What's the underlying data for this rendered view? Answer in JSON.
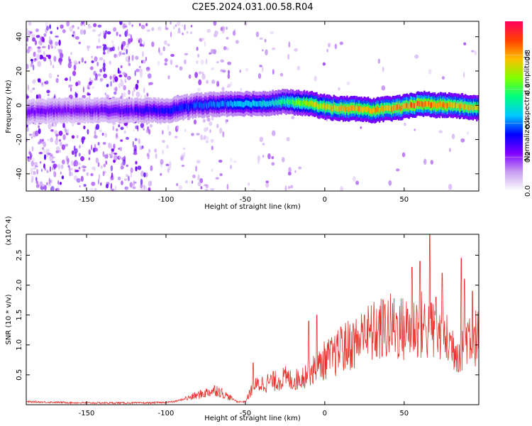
{
  "title": "C2E5.2024.031.00.58.R04",
  "colors": {
    "snr_line": "#e8302a",
    "axis": "#000000",
    "colorbar_stops": [
      "#ffffff",
      "#c8a0f0",
      "#8000ff",
      "#0000ff",
      "#00c8ff",
      "#00ff80",
      "#80ff00",
      "#ffc000",
      "#ff4000",
      "#ff0060"
    ]
  },
  "chart_data": [
    {
      "type": "heatmap",
      "xlabel": "Height of straight line (km)",
      "ylabel": "Frequency (Hz)",
      "xlim": [
        -188,
        97
      ],
      "ylim": [
        -50,
        49
      ],
      "xticks": [
        -150,
        -100,
        -50,
        0,
        50
      ],
      "yticks": [
        -40,
        -20,
        0,
        20,
        40
      ],
      "colorbar": {
        "label": "Normalized spectral amplitude",
        "range": [
          0.0,
          1.0
        ],
        "ticks": [
          0.0,
          0.2,
          0.4,
          0.6,
          0.8
        ]
      },
      "ridge": {
        "x": [
          -188,
          -170,
          -150,
          -120,
          -100,
          -80,
          -60,
          -40,
          -25,
          -10,
          0,
          10,
          20,
          30,
          40,
          50,
          60,
          70,
          80,
          90,
          97
        ],
        "freq": [
          -4,
          -3,
          -3,
          -3,
          -3,
          0,
          1,
          1,
          2,
          1,
          -1,
          -2,
          -2,
          -3,
          -2,
          -1,
          1,
          0,
          0,
          -1,
          -2
        ],
        "peak_amplitude": [
          0.25,
          0.25,
          0.25,
          0.3,
          0.35,
          0.4,
          0.45,
          0.5,
          0.6,
          0.75,
          0.8,
          0.85,
          0.85,
          0.85,
          0.85,
          0.9,
          0.9,
          0.9,
          0.85,
          0.85,
          0.8
        ]
      }
    },
    {
      "type": "line",
      "xlabel": "Height of straight line (km)",
      "ylabel": "SNR (10 * v/v)",
      "y_multiplier": "(x10^4)",
      "xlim": [
        -188,
        97
      ],
      "ylim": [
        0,
        2.85
      ],
      "xticks": [
        -150,
        -100,
        -50,
        0,
        50
      ],
      "yticks": [
        0.5,
        1.0,
        1.5,
        2.0,
        2.5
      ],
      "series": [
        {
          "x": [
            -188,
            -170,
            -150,
            -130,
            -110,
            -100,
            -95,
            -85,
            -75,
            -68,
            -62,
            -55,
            -50,
            -45,
            -40,
            -35,
            -30,
            -25,
            -20,
            -15,
            -10,
            -5,
            0,
            5,
            10,
            15,
            20,
            25,
            30,
            35,
            40,
            45,
            50,
            55,
            60,
            65,
            70,
            75,
            80,
            85,
            90,
            97
          ],
          "y": [
            0.05,
            0.04,
            0.03,
            0.03,
            0.03,
            0.04,
            0.05,
            0.12,
            0.2,
            0.25,
            0.15,
            0.05,
            0.05,
            0.3,
            0.35,
            0.38,
            0.4,
            0.45,
            0.4,
            0.45,
            0.55,
            0.6,
            0.75,
            0.8,
            0.9,
            1.0,
            1.05,
            1.15,
            1.2,
            1.25,
            1.3,
            1.3,
            1.25,
            1.3,
            1.35,
            1.25,
            1.2,
            1.1,
            1.0,
            0.9,
            1.2,
            1.1
          ],
          "spikes": [
            [
              -45,
              0.7
            ],
            [
              -10,
              1.4
            ],
            [
              -5,
              1.5
            ],
            [
              10,
              1.3
            ],
            [
              25,
              1.5
            ],
            [
              52,
              1.6
            ],
            [
              55,
              2.3
            ],
            [
              60,
              2.4
            ],
            [
              66,
              2.85
            ],
            [
              70,
              1.8
            ],
            [
              74,
              2.2
            ],
            [
              86,
              2.45
            ],
            [
              88,
              2.1
            ],
            [
              93,
              1.9
            ]
          ],
          "trend_noise": "high-frequency"
        }
      ]
    }
  ]
}
